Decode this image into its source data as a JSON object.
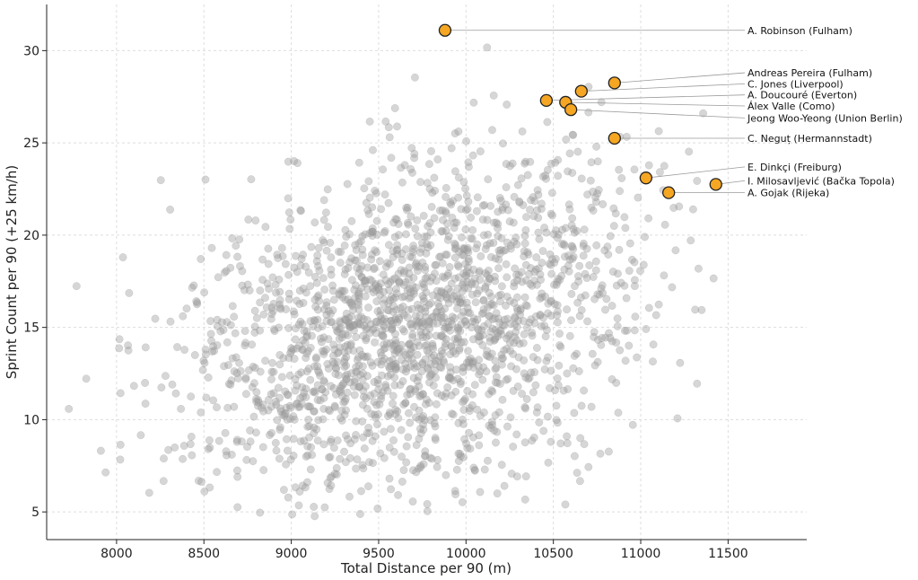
{
  "chart_data": {
    "type": "scatter",
    "title": "",
    "xlabel": "Total Distance per 90 (m)",
    "ylabel": "Sprint Count per 90 (+25 km/h)",
    "xlim": [
      7600,
      11950
    ],
    "ylim": [
      3.5,
      32.5
    ],
    "xticks": [
      8000,
      8500,
      9000,
      9500,
      10000,
      10500,
      11000,
      11500
    ],
    "yticks": [
      5,
      10,
      15,
      20,
      25,
      30
    ],
    "grid": true,
    "colors": {
      "background_points": "#9e9e9e",
      "highlight_fill": "#f5a623",
      "highlight_edge": "#222222",
      "grid": "#dddddd",
      "leader": "#9a9a9a"
    },
    "background_series": {
      "count": 2000,
      "x_mean": 9700,
      "x_sd": 650,
      "y_mean": 15.0,
      "y_sd": 4.6,
      "correlation": 0.32,
      "x_range": [
        7680,
        11420
      ],
      "y_range": [
        4.7,
        30.6
      ]
    },
    "highlighted": [
      {
        "name": "A. Robinson (Fulham)",
        "x": 9880,
        "y": 31.1,
        "label_y": 31.1
      },
      {
        "name": "Andreas Pereira (Fulham)",
        "x": 10850,
        "y": 28.25,
        "label_y": 28.8
      },
      {
        "name": "C. Jones (Liverpool)",
        "x": 10660,
        "y": 27.8,
        "label_y": 28.2
      },
      {
        "name": "A. Doucouré (Everton)",
        "x": 10460,
        "y": 27.3,
        "label_y": 27.6
      },
      {
        "name": "Álex Valle (Como)",
        "x": 10570,
        "y": 27.2,
        "label_y": 27.0
      },
      {
        "name": "Jeong Woo-Yeong (Union Berlin)",
        "x": 10600,
        "y": 26.8,
        "label_y": 26.35
      },
      {
        "name": "C. Neguț (Hermannstadt)",
        "x": 10850,
        "y": 25.25,
        "label_y": 25.25
      },
      {
        "name": "E. Dinkçi (Freiburg)",
        "x": 11030,
        "y": 23.1,
        "label_y": 23.7
      },
      {
        "name": "I. Milosavljević (Bačka Topola)",
        "x": 11430,
        "y": 22.75,
        "label_y": 22.95
      },
      {
        "name": "A. Gojak (Rijeka)",
        "x": 11160,
        "y": 22.3,
        "label_y": 22.3
      }
    ]
  }
}
